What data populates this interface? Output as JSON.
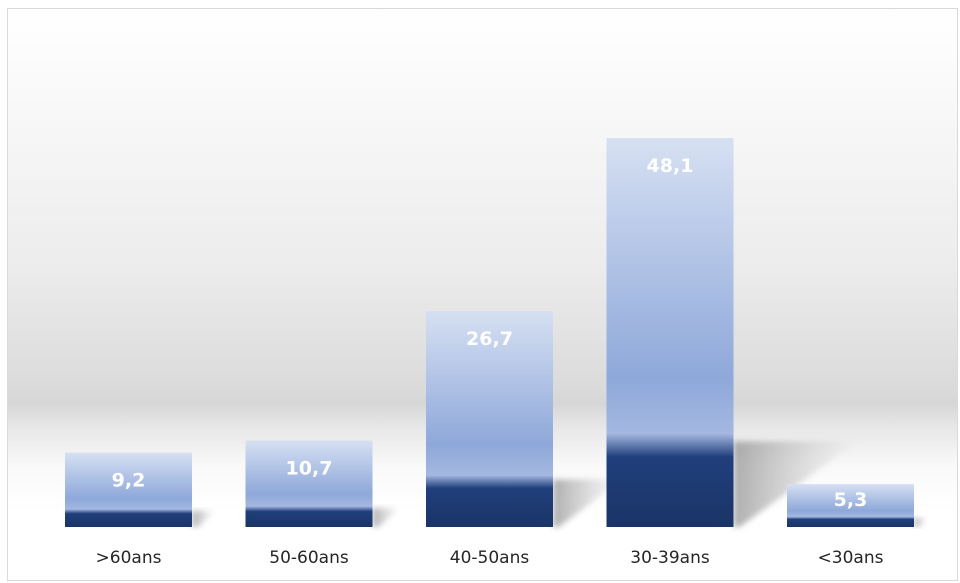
{
  "chart_data": {
    "type": "bar",
    "categories": [
      ">60ans",
      "50-60ans",
      "40-50ans",
      "30-39ans",
      "<30ans"
    ],
    "values": [
      9.2,
      10.7,
      26.7,
      48.1,
      5.3
    ],
    "value_labels": [
      "9,2",
      "10,7",
      "26,7",
      "48,1",
      "5,3"
    ],
    "title": "",
    "xlabel": "",
    "ylabel": "",
    "ylim": [
      0,
      48.1
    ],
    "grid": false,
    "legend": "none",
    "colors": {
      "bar_top": "#d6e0f2",
      "bar_mid": "#8ea8da",
      "bar_bottom": "#203f7c",
      "bar_base": "#1a3466"
    }
  }
}
